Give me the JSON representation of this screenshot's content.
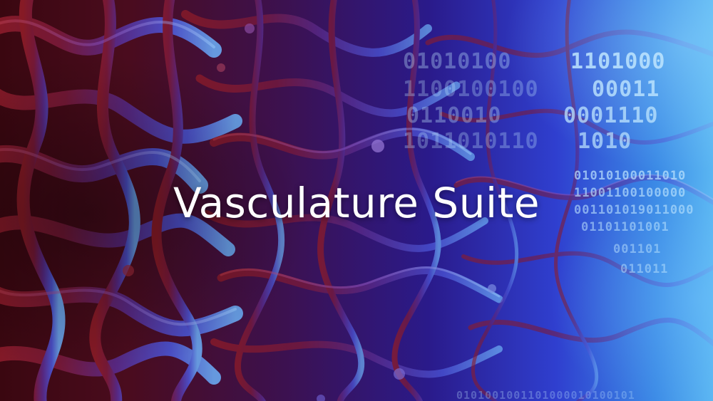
{
  "banner": {
    "title": "Vasculature Suite"
  },
  "palette": {
    "vessel_red": "#7a1622",
    "vessel_violet": "#5a2a8a",
    "vessel_blue": "#4a4fcf",
    "binary_light": "#bfe6ff"
  }
}
